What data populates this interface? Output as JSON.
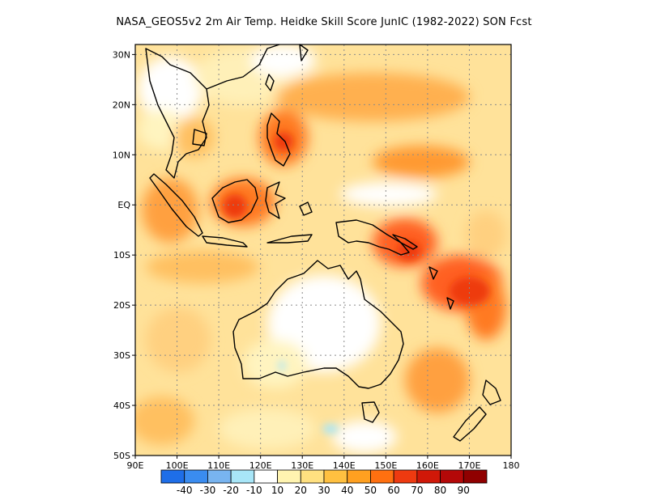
{
  "title": "NASA_GEOS5v2  2m Air Temp. Heidke Skill Score JunIC (1982-2022) SON Fcst",
  "map": {
    "lon_ticks": [
      "90E",
      "100E",
      "110E",
      "120E",
      "130E",
      "140E",
      "150E",
      "160E",
      "170E",
      "180"
    ],
    "lon_values": [
      90,
      100,
      110,
      120,
      130,
      140,
      150,
      160,
      170,
      180
    ],
    "lat_ticks": [
      "30N",
      "20N",
      "10N",
      "EQ",
      "10S",
      "20S",
      "30S",
      "40S",
      "50S"
    ],
    "lat_values": [
      30,
      20,
      10,
      0,
      -10,
      -20,
      -30,
      -40,
      -50
    ],
    "lon_range": [
      90,
      180
    ],
    "lat_range": [
      -50,
      32
    ],
    "grid": true
  },
  "colorbar": {
    "labels": [
      "-40",
      "-30",
      "-20",
      "-10",
      "10",
      "20",
      "30",
      "40",
      "50",
      "60",
      "70",
      "80",
      "90"
    ],
    "colors": [
      "#1e6ee8",
      "#3a8cf0",
      "#78b4f0",
      "#a8e6f8",
      "#ffffff",
      "#fff4b0",
      "#ffe080",
      "#ffc040",
      "#ffa020",
      "#ff7010",
      "#ee3a10",
      "#d01808",
      "#b40808",
      "#900000"
    ]
  }
}
